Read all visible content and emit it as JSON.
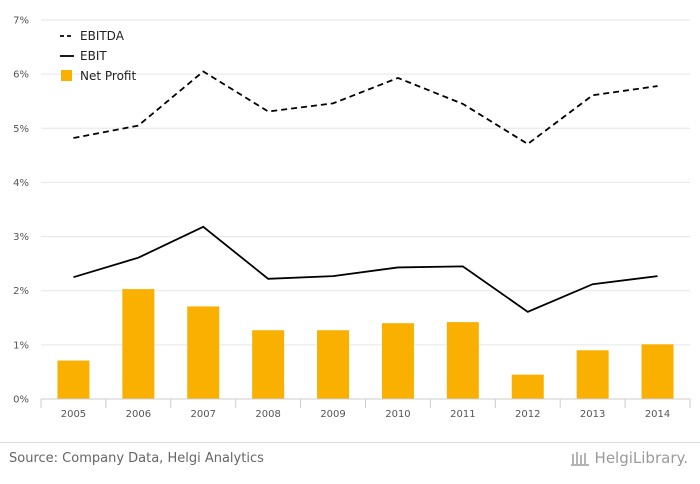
{
  "chart_data": {
    "type": "bar+line",
    "categories": [
      "2005",
      "2006",
      "2007",
      "2008",
      "2009",
      "2010",
      "2011",
      "2012",
      "2013",
      "2014"
    ],
    "series": [
      {
        "name": "EBITDA",
        "kind": "line",
        "style": "dashed",
        "color": "#000000",
        "values": [
          4.82,
          5.05,
          6.05,
          5.31,
          5.46,
          5.93,
          5.45,
          4.71,
          5.61,
          5.78
        ]
      },
      {
        "name": "EBIT",
        "kind": "line",
        "style": "solid",
        "color": "#000000",
        "values": [
          2.25,
          2.61,
          3.18,
          2.22,
          2.27,
          2.43,
          2.45,
          1.61,
          2.12,
          2.27
        ]
      },
      {
        "name": "Net Profit",
        "kind": "bar",
        "color": "#F9B000",
        "values": [
          0.71,
          2.03,
          1.71,
          1.27,
          1.27,
          1.4,
          1.42,
          0.45,
          0.9,
          1.01
        ]
      }
    ],
    "ylim": [
      0,
      7
    ],
    "yticks": [
      "0%",
      "1%",
      "2%",
      "3%",
      "4%",
      "5%",
      "6%",
      "7%"
    ],
    "title": "",
    "xlabel": "",
    "ylabel": "",
    "grid": true,
    "legend": "top-left"
  },
  "footer": {
    "source": "Source: Company Data, Helgi Analytics",
    "brand": "HelgiLibrary."
  },
  "colors": {
    "bar": "#F9B000",
    "grid": "#e6e6e6",
    "axis": "#cccccc"
  }
}
